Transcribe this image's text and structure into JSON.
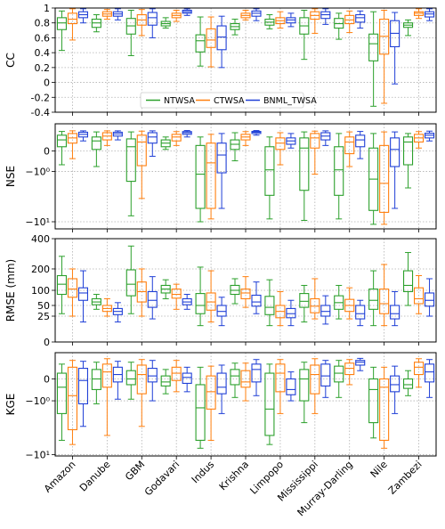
{
  "chart_data": [
    {
      "type": "box",
      "panel": "CC",
      "ylabel": "CC",
      "scale": "linear",
      "ylim": [
        -0.4,
        1.0
      ],
      "yticks": [
        -0.4,
        -0.2,
        0,
        0.2,
        0.4,
        0.6,
        0.8,
        1
      ],
      "ytick_labels": [
        "-0.4",
        "-0.2",
        "0",
        "0.2",
        "0.4",
        "0.6",
        "0.8",
        "1"
      ],
      "grid": true,
      "legend": {
        "placement": "bottom-center",
        "entries": [
          "NTWSA",
          "CTWSA",
          "BNML_TWSA"
        ]
      },
      "series": [
        {
          "name": "NTWSA",
          "boxes": [
            [
              0.43,
              0.71,
              0.8,
              0.87,
              0.96
            ],
            [
              0.68,
              0.74,
              0.8,
              0.85,
              0.91
            ],
            [
              0.36,
              0.65,
              0.76,
              0.86,
              0.97
            ],
            [
              0.73,
              0.76,
              0.79,
              0.82,
              0.87
            ],
            [
              0.22,
              0.41,
              0.56,
              0.64,
              0.88
            ],
            [
              0.64,
              0.71,
              0.75,
              0.79,
              0.85
            ],
            [
              0.72,
              0.77,
              0.81,
              0.85,
              0.91
            ],
            [
              0.31,
              0.65,
              0.76,
              0.87,
              0.97
            ],
            [
              0.58,
              0.73,
              0.79,
              0.86,
              0.93
            ],
            [
              -0.32,
              0.29,
              0.52,
              0.65,
              0.95
            ],
            [
              0.63,
              0.74,
              0.77,
              0.8,
              0.84
            ]
          ]
        },
        {
          "name": "CTWSA",
          "boxes": [
            [
              0.57,
              0.79,
              0.85,
              0.93,
              0.99
            ],
            [
              0.85,
              0.89,
              0.92,
              0.95,
              0.98
            ],
            [
              0.63,
              0.77,
              0.84,
              0.91,
              0.98
            ],
            [
              0.82,
              0.87,
              0.9,
              0.93,
              0.97
            ],
            [
              0.21,
              0.47,
              0.57,
              0.72,
              0.88
            ],
            [
              0.84,
              0.87,
              0.9,
              0.93,
              0.97
            ],
            [
              0.73,
              0.79,
              0.83,
              0.87,
              0.95
            ],
            [
              0.66,
              0.85,
              0.9,
              0.95,
              0.99
            ],
            [
              0.67,
              0.79,
              0.84,
              0.9,
              0.96
            ],
            [
              -0.28,
              0.38,
              0.62,
              0.85,
              0.97
            ],
            [
              0.86,
              0.9,
              0.93,
              0.95,
              0.99
            ]
          ]
        },
        {
          "name": "BNML_TWSA",
          "boxes": [
            [
              0.8,
              0.87,
              0.91,
              0.95,
              0.99
            ],
            [
              0.84,
              0.89,
              0.92,
              0.95,
              0.99
            ],
            [
              0.6,
              0.77,
              0.87,
              0.94,
              0.99
            ],
            [
              0.9,
              0.93,
              0.95,
              0.97,
              0.99
            ],
            [
              0.2,
              0.44,
              0.61,
              0.76,
              0.89
            ],
            [
              0.83,
              0.89,
              0.93,
              0.96,
              0.99
            ],
            [
              0.75,
              0.8,
              0.84,
              0.87,
              0.93
            ],
            [
              0.78,
              0.86,
              0.91,
              0.95,
              0.99
            ],
            [
              0.73,
              0.81,
              0.87,
              0.91,
              0.96
            ],
            [
              -0.02,
              0.48,
              0.66,
              0.83,
              0.94
            ],
            [
              0.83,
              0.88,
              0.92,
              0.95,
              0.99
            ]
          ]
        }
      ]
    },
    {
      "type": "box",
      "panel": "NSE",
      "ylabel": "NSE",
      "scale": "symlog",
      "ylim": [
        -13,
        1.5
      ],
      "yticks": [
        0,
        -1,
        -10
      ],
      "ytick_labels": [
        "0",
        "−10⁰",
        "−10¹"
      ],
      "grid": true,
      "series": [
        {
          "name": "NTWSA",
          "boxes": [
            [
              -0.6,
              0.15,
              0.45,
              0.7,
              0.93
            ],
            [
              -0.7,
              0.05,
              0.4,
              0.6,
              0.9
            ],
            [
              -8.0,
              -1.8,
              0.15,
              0.5,
              0.9
            ],
            [
              0.05,
              0.15,
              0.3,
              0.45,
              0.6
            ],
            [
              -10.0,
              -6.0,
              -1.2,
              0.2,
              0.6
            ],
            [
              -0.4,
              0.05,
              0.25,
              0.45,
              0.85
            ],
            [
              -9.0,
              -3.5,
              -0.9,
              0.15,
              0.6
            ],
            [
              -9.5,
              -2.8,
              0.1,
              0.55,
              0.9
            ],
            [
              -9.0,
              -3.5,
              -0.9,
              0.15,
              0.8
            ],
            [
              -11.0,
              -6.5,
              -1.6,
              0.1,
              0.8
            ],
            [
              -2.5,
              -0.6,
              0.35,
              0.6,
              0.8
            ]
          ]
        },
        {
          "name": "CTWSA",
          "boxes": [
            [
              -0.3,
              0.3,
              0.55,
              0.8,
              0.97
            ],
            [
              0.2,
              0.45,
              0.65,
              0.85,
              0.97
            ],
            [
              -4.0,
              -0.65,
              0.35,
              0.7,
              0.95
            ],
            [
              0.2,
              0.4,
              0.6,
              0.75,
              0.92
            ],
            [
              -9.0,
              -6.0,
              -0.5,
              0.3,
              0.75
            ],
            [
              0.2,
              0.45,
              0.6,
              0.75,
              0.92
            ],
            [
              -0.6,
              0.05,
              0.3,
              0.55,
              0.85
            ],
            [
              -1.2,
              0.1,
              0.55,
              0.8,
              0.95
            ],
            [
              -0.7,
              -0.1,
              0.35,
              0.6,
              0.9
            ],
            [
              -11.0,
              -7.0,
              -2.0,
              0.2,
              0.9
            ],
            [
              0.1,
              0.35,
              0.55,
              0.75,
              0.92
            ]
          ]
        },
        {
          "name": "BNML_TWSA",
          "boxes": [
            [
              0.4,
              0.6,
              0.75,
              0.88,
              0.97
            ],
            [
              0.45,
              0.65,
              0.78,
              0.88,
              0.97
            ],
            [
              -0.2,
              0.3,
              0.6,
              0.85,
              0.97
            ],
            [
              0.6,
              0.75,
              0.85,
              0.92,
              0.99
            ],
            [
              -6.0,
              -1.1,
              -0.15,
              0.3,
              0.8
            ],
            [
              0.7,
              0.8,
              0.88,
              0.93,
              0.99
            ],
            [
              0.1,
              0.25,
              0.4,
              0.55,
              0.8
            ],
            [
              0.2,
              0.45,
              0.65,
              0.85,
              0.97
            ],
            [
              -0.3,
              0.15,
              0.45,
              0.7,
              0.93
            ],
            [
              -6.0,
              -0.7,
              0.05,
              0.55,
              0.9
            ],
            [
              0.4,
              0.55,
              0.7,
              0.82,
              0.95
            ]
          ]
        }
      ]
    },
    {
      "type": "box",
      "panel": "RMSE",
      "ylabel": "RMSE (mm)",
      "scale": "sqrt",
      "ylim": [
        0,
        400
      ],
      "yticks": [
        0,
        25,
        50,
        100,
        200,
        400
      ],
      "ytick_labels": [
        "0",
        "25",
        "50",
        "100",
        "200",
        "400"
      ],
      "grid": true,
      "series": [
        {
          "name": "NTWSA",
          "boxes": [
            [
              30,
              85,
              125,
              165,
              275
            ],
            [
              40,
              52,
              60,
              70,
              85
            ],
            [
              30,
              80,
              125,
              195,
              345
            ],
            [
              70,
              90,
              105,
              120,
              145
            ],
            [
              10,
              30,
              50,
              88,
              210
            ],
            [
              55,
              85,
              100,
              120,
              150
            ],
            [
              10,
              28,
              45,
              78,
              145
            ],
            [
              15,
              45,
              62,
              88,
              120
            ],
            [
              20,
              40,
              58,
              80,
              120
            ],
            [
              10,
              40,
              65,
              105,
              190
            ],
            [
              50,
              95,
              120,
              190,
              300
            ]
          ]
        },
        {
          "name": "CTWSA",
          "boxes": [
            [
              25,
              75,
              105,
              150,
              200
            ],
            [
              25,
              35,
              42,
              50,
              70
            ],
            [
              25,
              60,
              95,
              135,
              200
            ],
            [
              40,
              72,
              85,
              105,
              125
            ],
            [
              15,
              38,
              60,
              90,
              190
            ],
            [
              45,
              70,
              90,
              105,
              160
            ],
            [
              10,
              22,
              35,
              50,
              95
            ],
            [
              20,
              32,
              48,
              70,
              150
            ],
            [
              20,
              35,
              50,
              68,
              110
            ],
            [
              10,
              30,
              55,
              105,
              225
            ],
            [
              30,
              55,
              70,
              110,
              165
            ]
          ]
        },
        {
          "name": "BNML_TWSA",
          "boxes": [
            [
              15,
              65,
              90,
              110,
              190
            ],
            [
              15,
              28,
              35,
              42,
              58
            ],
            [
              20,
              45,
              65,
              95,
              160
            ],
            [
              40,
              52,
              60,
              70,
              85
            ],
            [
              10,
              25,
              35,
              50,
              75
            ],
            [
              30,
              48,
              60,
              82,
              135
            ],
            [
              10,
              22,
              30,
              42,
              65
            ],
            [
              12,
              25,
              35,
              50,
              80
            ],
            [
              10,
              20,
              30,
              50,
              65
            ],
            [
              10,
              20,
              30,
              50,
              95
            ],
            [
              25,
              48,
              65,
              90,
              150
            ]
          ]
        }
      ]
    },
    {
      "type": "box",
      "panel": "KGE",
      "ylabel": "KGE",
      "scale": "symlog",
      "ylim": [
        -10.5,
        1.3
      ],
      "yticks": [
        0,
        -1,
        -10
      ],
      "ytick_labels": [
        "0",
        "−10⁰",
        "−10¹"
      ],
      "grid": true,
      "series": [
        {
          "name": "NTWSA",
          "boxes": [
            [
              -6.0,
              -2.0,
              -0.3,
              0.2,
              0.6
            ],
            [
              -1.2,
              -0.4,
              0.0,
              0.35,
              0.7
            ],
            [
              -0.9,
              -0.2,
              0.0,
              0.3,
              0.7
            ],
            [
              -0.6,
              -0.25,
              -0.1,
              0.1,
              0.35
            ],
            [
              -8.0,
              -6.0,
              -1.5,
              -0.2,
              0.45
            ],
            [
              -0.8,
              -0.2,
              0.1,
              0.35,
              0.65
            ],
            [
              -7.0,
              -5.0,
              -1.6,
              0.2,
              0.6
            ],
            [
              -3.0,
              -1.0,
              0.0,
              0.35,
              0.7
            ],
            [
              -0.8,
              -0.1,
              0.2,
              0.5,
              0.8
            ],
            [
              -5.5,
              -3.0,
              -0.4,
              0.0,
              0.45
            ],
            [
              -0.7,
              -0.35,
              -0.2,
              0.0,
              0.3
            ]
          ]
        },
        {
          "name": "CTWSA",
          "boxes": [
            [
              -7.0,
              -4.0,
              -0.7,
              0.45,
              0.8
            ],
            [
              -5.0,
              -0.3,
              0.25,
              0.6,
              0.9
            ],
            [
              -3.5,
              -0.6,
              0.15,
              0.55,
              0.85
            ],
            [
              -0.5,
              -0.05,
              0.2,
              0.45,
              0.8
            ],
            [
              -6.0,
              -1.6,
              -0.5,
              0.1,
              0.5
            ],
            [
              -1.0,
              -0.3,
              -0.1,
              0.3,
              0.65
            ],
            [
              -2.0,
              -0.5,
              0.2,
              0.6,
              0.85
            ],
            [
              -2.0,
              -0.6,
              0.15,
              0.55,
              0.9
            ],
            [
              -0.2,
              0.15,
              0.4,
              0.65,
              0.85
            ],
            [
              -8.0,
              -6.0,
              -0.3,
              0.0,
              0.45
            ],
            [
              -0.3,
              0.15,
              0.45,
              0.7,
              0.9
            ]
          ]
        },
        {
          "name": "BNML_TWSA",
          "boxes": [
            [
              -3.5,
              -1.2,
              -0.05,
              0.4,
              0.75
            ],
            [
              -0.9,
              -0.1,
              0.15,
              0.45,
              0.75
            ],
            [
              -1.0,
              -0.1,
              0.1,
              0.4,
              0.8
            ],
            [
              -0.5,
              -0.15,
              0.05,
              0.2,
              0.45
            ],
            [
              -2.0,
              -0.6,
              -0.3,
              0.2,
              0.55
            ],
            [
              -0.7,
              -0.1,
              0.35,
              0.6,
              0.85
            ],
            [
              -1.0,
              -0.65,
              -0.4,
              0.0,
              0.25
            ],
            [
              -0.8,
              -0.25,
              0.1,
              0.6,
              0.8
            ],
            [
              0.3,
              0.55,
              0.7,
              0.8,
              0.92
            ],
            [
              -2.0,
              -0.5,
              -0.2,
              0.1,
              0.5
            ],
            [
              -0.8,
              -0.1,
              0.25,
              0.6,
              0.85
            ]
          ]
        }
      ]
    }
  ],
  "categories": [
    "Amazon",
    "Danube",
    "GBM",
    "Godavari",
    "Indus",
    "Krishna",
    "Limpopo",
    "Mississippi",
    "Murray-Darling",
    "Nile",
    "Zambezi"
  ],
  "colors": {
    "NTWSA": "#2ca02c",
    "CTWSA": "#ff7f0e",
    "BNML_TWSA": "#1f3fd6"
  }
}
